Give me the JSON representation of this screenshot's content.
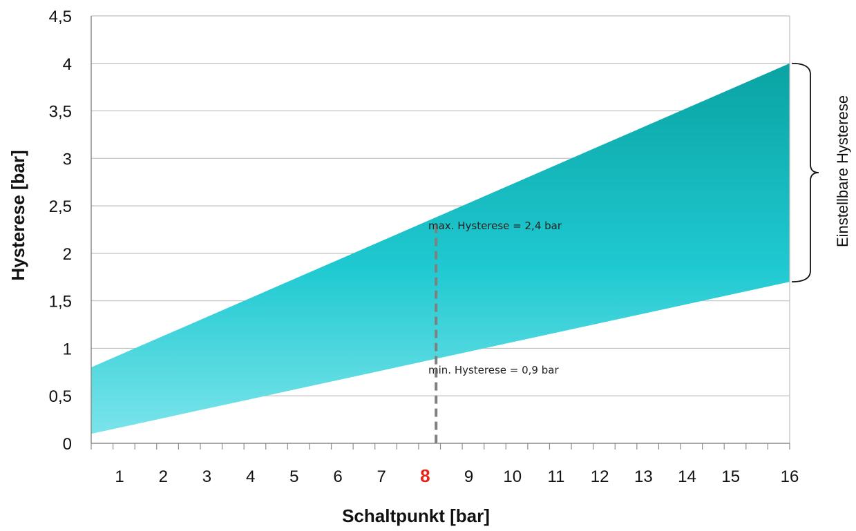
{
  "chart_data": {
    "type": "area",
    "xlabel": "Schaltpunkt [bar]",
    "ylabel": "Hysterese [bar]",
    "xlim": [
      0,
      16
    ],
    "ylim": [
      0,
      4.5
    ],
    "x_ticks": [
      "1",
      "2",
      "3",
      "4",
      "5",
      "6",
      "7",
      "8",
      "9",
      "10",
      "11",
      "12",
      "13",
      "14",
      "15",
      "16"
    ],
    "x_tick_highlight": "8",
    "y_ticks": [
      "0",
      "0,5",
      "1",
      "1,5",
      "2",
      "2,5",
      "3",
      "3,5",
      "4",
      "4,5"
    ],
    "grid": "horizontal",
    "band": {
      "x": [
        0,
        16
      ],
      "max": [
        0.8,
        4.0
      ],
      "min": [
        0.1,
        1.7
      ]
    },
    "marker_line": {
      "x": 7.9,
      "y_top": 2.3,
      "style": "dashed"
    },
    "annotations": {
      "max_label": "max. Hysterese = 2,4 bar",
      "min_label": "min. Hysterese = 0,9 bar",
      "bracket_label": "Einstellbare Hysterese"
    },
    "colors": {
      "band_top": "#0aa3a3",
      "band_mid": "#1fc9d1",
      "band_bottom": "#7ae4ea",
      "grid": "#bfbfbf",
      "marker": "#808080",
      "highlight_tick": "#e8231a"
    }
  }
}
